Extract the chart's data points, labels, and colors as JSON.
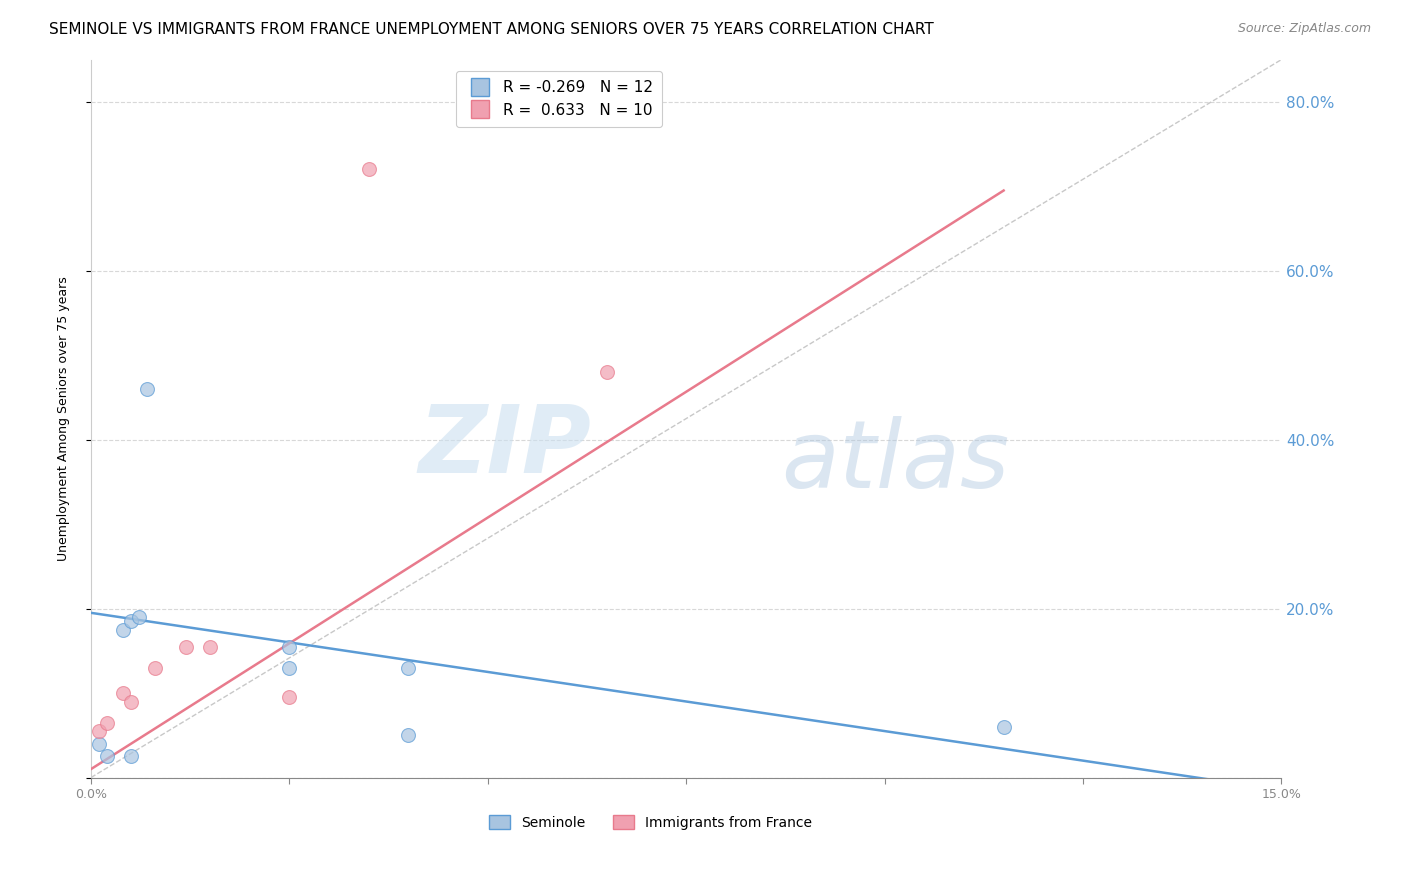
{
  "title": "SEMINOLE VS IMMIGRANTS FROM FRANCE UNEMPLOYMENT AMONG SENIORS OVER 75 YEARS CORRELATION CHART",
  "source": "Source: ZipAtlas.com",
  "ylabel": "Unemployment Among Seniors over 75 years",
  "right_ytick_values": [
    0.2,
    0.4,
    0.6,
    0.8
  ],
  "xlim": [
    0.0,
    0.15
  ],
  "ylim": [
    0.0,
    0.85
  ],
  "legend_entries": [
    {
      "label": "Seminole",
      "R": "-0.269",
      "N": "12",
      "color": "#a8c4e0"
    },
    {
      "label": "Immigrants from France",
      "R": "0.633",
      "N": "10",
      "color": "#f0a0b0"
    }
  ],
  "seminole_points": [
    [
      0.001,
      0.04
    ],
    [
      0.002,
      0.025
    ],
    [
      0.004,
      0.175
    ],
    [
      0.005,
      0.185
    ],
    [
      0.006,
      0.19
    ],
    [
      0.007,
      0.46
    ],
    [
      0.025,
      0.155
    ],
    [
      0.025,
      0.13
    ],
    [
      0.04,
      0.13
    ],
    [
      0.04,
      0.05
    ],
    [
      0.115,
      0.06
    ],
    [
      0.005,
      0.025
    ]
  ],
  "france_points": [
    [
      0.001,
      0.055
    ],
    [
      0.002,
      0.065
    ],
    [
      0.004,
      0.1
    ],
    [
      0.005,
      0.09
    ],
    [
      0.008,
      0.13
    ],
    [
      0.012,
      0.155
    ],
    [
      0.015,
      0.155
    ],
    [
      0.025,
      0.095
    ],
    [
      0.035,
      0.72
    ],
    [
      0.065,
      0.48
    ]
  ],
  "blue_line_x": [
    0.0,
    0.15
  ],
  "blue_line_y": [
    0.195,
    -0.015
  ],
  "pink_line_x": [
    0.0,
    0.115
  ],
  "pink_line_y": [
    0.01,
    0.695
  ],
  "diag_line_x": [
    0.0,
    0.15
  ],
  "diag_line_y": [
    0.0,
    0.85
  ],
  "watermark_zip": "ZIP",
  "watermark_atlas": "atlas",
  "blue_color": "#5b9bd5",
  "pink_color": "#e87a8c",
  "blue_scatter_color": "#a8c4e0",
  "pink_scatter_color": "#f0a0b0",
  "diag_line_color": "#c8c8c8",
  "right_axis_color": "#5b9bd5",
  "grid_color": "#d8d8d8",
  "title_fontsize": 11,
  "source_fontsize": 9,
  "ylabel_fontsize": 9,
  "scatter_size": 100
}
